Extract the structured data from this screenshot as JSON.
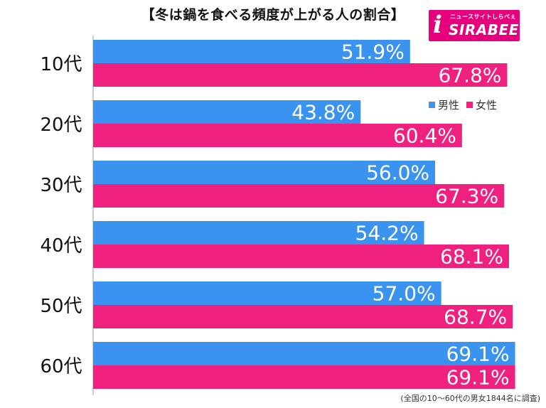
{
  "title": "【冬は鍋を食べる頻度が上がる人の割合】",
  "logo": {
    "tagline": "ニュースサイトしらべぇ",
    "name": "SIRABEE",
    "mark": "i"
  },
  "note": "(全国の10〜60代の男女1844名に調査)",
  "colors": {
    "male": "#3b93f0",
    "female": "#f0207f",
    "brand": "#e6007e"
  },
  "chart_data": {
    "type": "bar",
    "orientation": "horizontal",
    "categories": [
      "10代",
      "20代",
      "30代",
      "40代",
      "50代",
      "60代"
    ],
    "series": [
      {
        "name": "男性",
        "values": [
          51.9,
          43.8,
          56.0,
          54.2,
          57.0,
          69.1
        ]
      },
      {
        "name": "女性",
        "values": [
          67.8,
          60.4,
          67.3,
          68.1,
          68.7,
          69.1
        ]
      }
    ],
    "value_suffix": "%",
    "xlim": [
      0,
      100
    ],
    "grid": false,
    "legend_position": "right"
  }
}
